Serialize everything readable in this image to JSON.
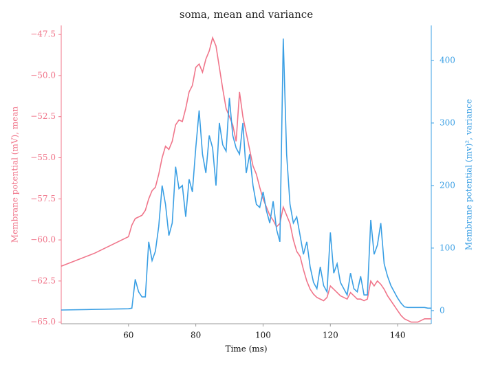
{
  "chart_data": {
    "type": "line",
    "title": "soma, mean and variance",
    "x_label": "Time (ms)",
    "y_label": "Membrane potential (mV), mean",
    "y2_label": "Membrane potential (mv)², variance",
    "x": [
      40,
      50,
      60,
      61,
      62,
      63,
      64,
      65,
      66,
      67,
      68,
      69,
      70,
      71,
      72,
      73,
      74,
      75,
      76,
      77,
      78,
      79,
      80,
      81,
      82,
      83,
      84,
      85,
      86,
      87,
      88,
      89,
      90,
      91,
      92,
      93,
      94,
      95,
      96,
      97,
      98,
      99,
      100,
      101,
      102,
      103,
      104,
      105,
      106,
      107,
      108,
      109,
      110,
      111,
      112,
      113,
      114,
      115,
      116,
      117,
      118,
      119,
      120,
      121,
      122,
      123,
      124,
      125,
      126,
      127,
      128,
      129,
      130,
      131,
      132,
      133,
      134,
      135,
      136,
      137,
      138,
      139,
      140,
      141,
      142,
      143,
      144,
      145,
      146,
      147,
      148,
      149,
      150
    ],
    "series": [
      {
        "name": "mean",
        "color": "#f0758a",
        "axis": "y",
        "values": [
          -61.6,
          -60.8,
          -59.8,
          -59.1,
          -58.7,
          -58.6,
          -58.5,
          -58.2,
          -57.5,
          -57.0,
          -56.8,
          -56.0,
          -55.0,
          -54.3,
          -54.5,
          -54.0,
          -53.0,
          -52.7,
          -52.8,
          -52.0,
          -51.0,
          -50.6,
          -49.5,
          -49.3,
          -49.8,
          -49.0,
          -48.5,
          -47.7,
          -48.2,
          -49.5,
          -50.8,
          -52.0,
          -52.5,
          -53.0,
          -54.0,
          -51.0,
          -52.5,
          -53.5,
          -54.5,
          -55.5,
          -56.0,
          -56.8,
          -57.5,
          -58.0,
          -58.5,
          -58.8,
          -59.2,
          -59.0,
          -58.0,
          -58.5,
          -59.0,
          -60.0,
          -60.7,
          -61.0,
          -61.8,
          -62.5,
          -63.0,
          -63.3,
          -63.5,
          -63.6,
          -63.7,
          -63.5,
          -62.8,
          -63.0,
          -63.2,
          -63.4,
          -63.5,
          -63.6,
          -63.2,
          -63.4,
          -63.6,
          -63.6,
          -63.7,
          -63.6,
          -62.5,
          -62.8,
          -62.5,
          -62.7,
          -63.0,
          -63.4,
          -63.7,
          -64.0,
          -64.3,
          -64.6,
          -64.8,
          -64.9,
          -65.0,
          -65.0,
          -65.0,
          -64.9,
          -64.8,
          -64.8,
          -64.8
        ]
      },
      {
        "name": "variance",
        "color": "#3a9fe4",
        "axis": "y2",
        "values": [
          1,
          2,
          3,
          4,
          50,
          30,
          22,
          22,
          110,
          80,
          95,
          135,
          200,
          170,
          120,
          140,
          230,
          195,
          200,
          150,
          210,
          190,
          260,
          320,
          250,
          220,
          280,
          260,
          200,
          300,
          265,
          255,
          340,
          280,
          260,
          250,
          300,
          220,
          250,
          200,
          170,
          165,
          190,
          160,
          140,
          175,
          130,
          110,
          435,
          250,
          170,
          140,
          150,
          120,
          90,
          110,
          70,
          45,
          35,
          70,
          40,
          30,
          125,
          60,
          75,
          45,
          35,
          25,
          60,
          35,
          30,
          55,
          25,
          25,
          145,
          90,
          105,
          140,
          75,
          55,
          40,
          30,
          20,
          12,
          6,
          5,
          5,
          5,
          5,
          5,
          5,
          4,
          4
        ]
      }
    ],
    "xlim": [
      40,
      150
    ],
    "xticks": [
      60,
      80,
      100,
      120,
      140
    ],
    "ylim": [
      -65.1,
      -46.95
    ],
    "yticks": [
      {
        "value": -65,
        "label": "−65.0"
      },
      {
        "value": -62.5,
        "label": "−62.5"
      },
      {
        "value": -60,
        "label": "−60.0"
      },
      {
        "value": -57.5,
        "label": "−57.5"
      },
      {
        "value": -55,
        "label": "−55.0"
      },
      {
        "value": -52.5,
        "label": "−52.5"
      },
      {
        "value": -50,
        "label": "−50.0"
      },
      {
        "value": -47.5,
        "label": "−47.5"
      }
    ],
    "y2lim": [
      -21,
      456
    ],
    "y2ticks": [
      0,
      100,
      200,
      300,
      400
    ]
  }
}
